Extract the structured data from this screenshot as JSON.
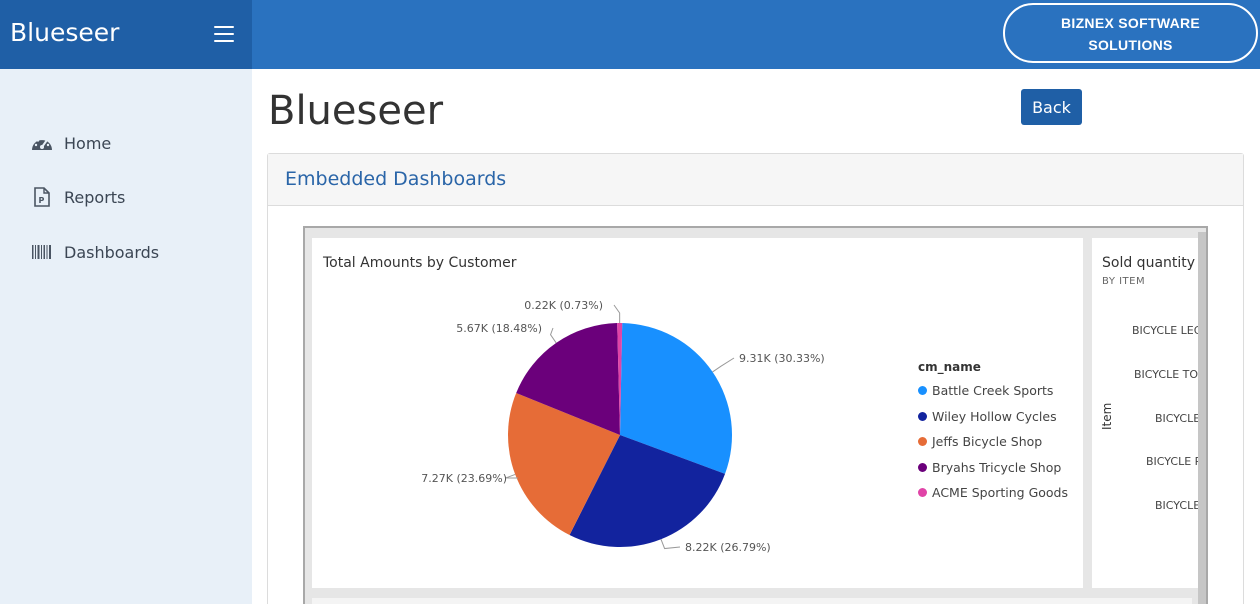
{
  "header": {
    "brand": "Blueseer",
    "company_button": [
      "BIZNEX SOFTWARE",
      "SOLUTIONS"
    ]
  },
  "sidebar": {
    "items": [
      {
        "label": "Home",
        "icon": "gauge-icon"
      },
      {
        "label": "Reports",
        "icon": "report-file-icon"
      },
      {
        "label": "Dashboards",
        "icon": "barcode-icon"
      }
    ]
  },
  "main": {
    "title": "Blueseer",
    "back_label": "Back",
    "card_title": "Embedded Dashboards"
  },
  "colors": {
    "topbar": "#2a72bf",
    "brand_bg": "#1f5fa6",
    "sidebar_bg": "#e8f0f8",
    "accent": "#1f5fa6"
  },
  "pie_panel": {
    "title": "Total Amounts by Customer"
  },
  "bar_panel": {
    "title": "Sold quantity",
    "subtitle": "BY ITEM",
    "axis_label": "Item",
    "categories_visible": [
      "BICYCLE LEG",
      "BICYCLE TOF",
      "BICYCLE",
      "BICYCLE P",
      "BICYCLE"
    ]
  },
  "chart_data": {
    "type": "pie",
    "title": "Total Amounts by Customer",
    "legend_title": "cm_name",
    "legend_position": "right",
    "slices": [
      {
        "name": "Battle Creek Sports",
        "value": 9.31,
        "label": "9.31K (30.33%)",
        "percent": 30.33,
        "color": "#1890ff"
      },
      {
        "name": "Wiley Hollow Cycles",
        "value": 8.22,
        "label": "8.22K (26.79%)",
        "percent": 26.79,
        "color": "#12239e"
      },
      {
        "name": "Jeffs Bicycle Shop",
        "value": 7.27,
        "label": "7.27K (23.69%)",
        "percent": 23.69,
        "color": "#e66c37"
      },
      {
        "name": "Bryahs Tricycle Shop",
        "value": 5.67,
        "label": "5.67K (18.48%)",
        "percent": 18.48,
        "color": "#6b007b"
      },
      {
        "name": "ACME Sporting Goods",
        "value": 0.22,
        "label": "0.22K (0.73%)",
        "percent": 0.73,
        "color": "#e044a7"
      }
    ]
  }
}
